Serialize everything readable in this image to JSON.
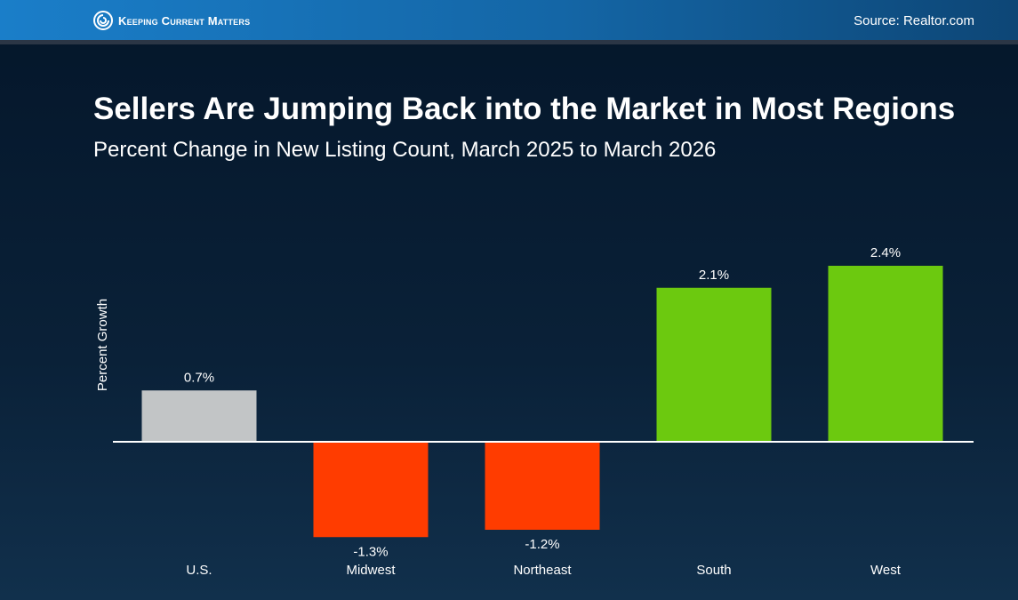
{
  "header": {
    "brand": "Keeping Current Matters",
    "source": "Source: Realtor.com"
  },
  "colors": {
    "header_blue": "#1a7ec9",
    "background": "#07192d",
    "neutral_bar": "#c2c5c6",
    "negative_bar": "#ff3c00",
    "positive_bar": "#6cc90f",
    "baseline": "#ffffff"
  },
  "icons": {
    "brand_logo": "kcm-swirl-logo-icon"
  },
  "chart_data": {
    "type": "bar",
    "title": "Sellers Are Jumping Back into the Market in Most Regions",
    "subtitle": "Percent Change in New Listing Count, March 2025 to March 2026",
    "ylabel": "Percent Growth",
    "xlabel": "",
    "ylim": [
      -1.5,
      2.6
    ],
    "grid": false,
    "categories": [
      "U.S.",
      "Midwest",
      "Northeast",
      "South",
      "West"
    ],
    "values": [
      0.7,
      -1.3,
      -1.2,
      2.1,
      2.4
    ],
    "data_labels": [
      "0.7%",
      "-1.3%",
      "-1.2%",
      "2.1%",
      "2.4%"
    ],
    "bar_colors": [
      "#c2c5c6",
      "#ff3c00",
      "#ff3c00",
      "#6cc90f",
      "#6cc90f"
    ]
  }
}
